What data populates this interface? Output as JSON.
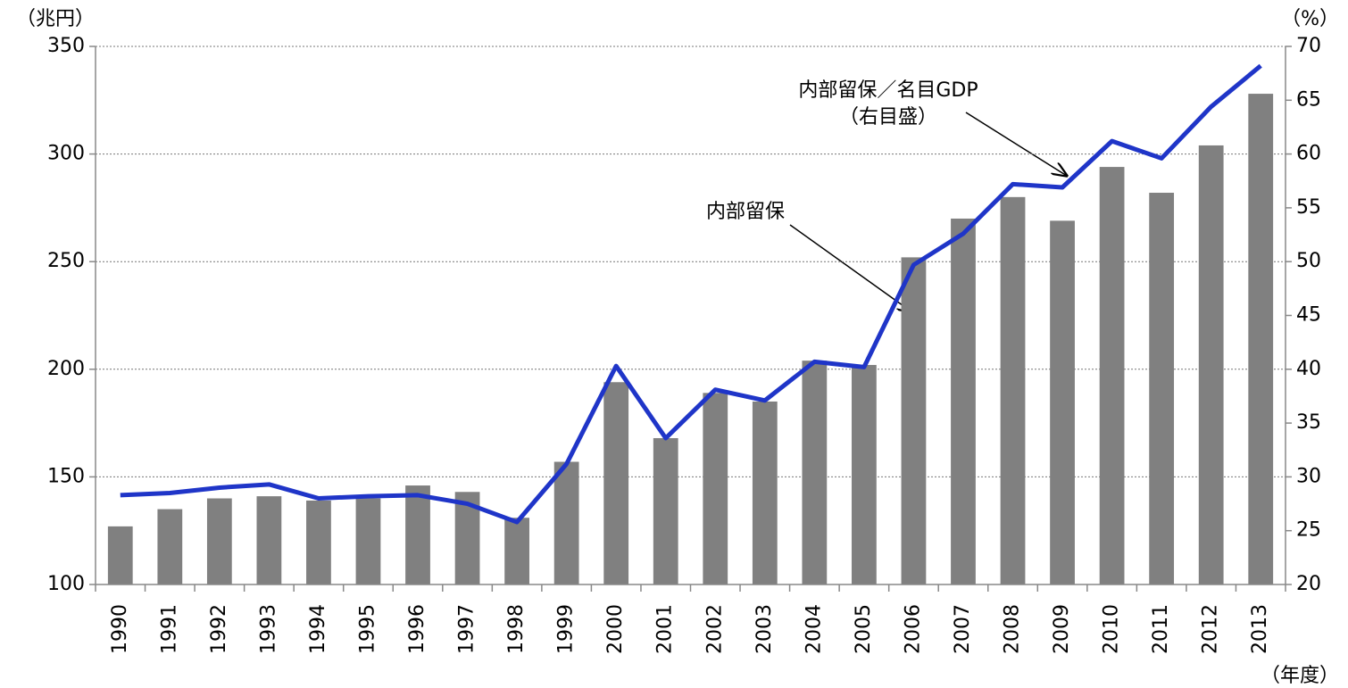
{
  "chart_data": {
    "type": "bar_line",
    "y_label": "（兆円）",
    "y2_label": "（%）",
    "x_label": "（年度）",
    "categories": [
      "1990",
      "1991",
      "1992",
      "1993",
      "1994",
      "1995",
      "1996",
      "1997",
      "1998",
      "1999",
      "2000",
      "2001",
      "2002",
      "2003",
      "2004",
      "2005",
      "2006",
      "2007",
      "2008",
      "2009",
      "2010",
      "2011",
      "2012",
      "2013"
    ],
    "series": [
      {
        "name": "内部留保",
        "type": "bar",
        "color": "#808080",
        "values": [
          127,
          135,
          140,
          141,
          139,
          140,
          146,
          143,
          131,
          157,
          194,
          168,
          189,
          185,
          204,
          202,
          252,
          270,
          280,
          269,
          294,
          282,
          304,
          328
        ]
      },
      {
        "name": "内部留保／名目GDP",
        "type": "line",
        "axis": "y2",
        "color": "#1f35c8",
        "values": [
          28.3,
          28.5,
          29.0,
          29.3,
          28.0,
          28.2,
          28.3,
          27.5,
          25.8,
          31.2,
          40.3,
          33.6,
          38.1,
          37.1,
          40.7,
          40.2,
          49.7,
          52.6,
          57.2,
          56.9,
          61.2,
          59.6,
          64.4,
          68.2
        ]
      }
    ],
    "annotations": [
      {
        "text": "内部留保／名目GDP",
        "subtext": "（右目盛）"
      },
      {
        "text": "内部留保"
      }
    ],
    "ylim": [
      100,
      350
    ],
    "yticks": [
      100,
      150,
      200,
      250,
      300,
      350
    ],
    "y2lim": [
      20,
      70
    ],
    "y2ticks": [
      20,
      25,
      30,
      35,
      40,
      45,
      50,
      55,
      60,
      65,
      70
    ],
    "grid": true
  }
}
